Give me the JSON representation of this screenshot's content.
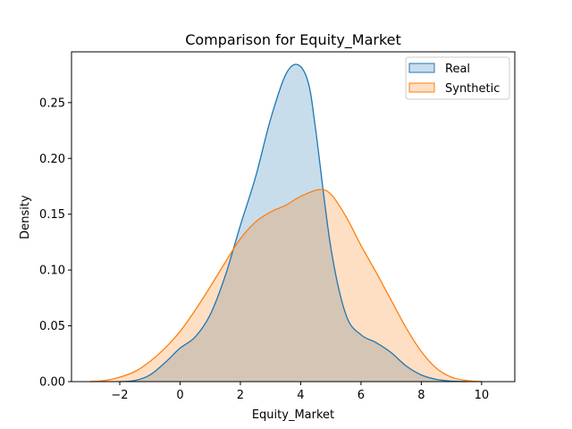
{
  "chart_data": {
    "type": "area",
    "title": "Comparison for Equity_Market",
    "xlabel": "Equity_Market",
    "ylabel": "Density",
    "xlim": [
      -3.6,
      11.1
    ],
    "ylim": [
      0,
      0.2955
    ],
    "xticks": [
      -2,
      0,
      2,
      4,
      6,
      8,
      10
    ],
    "xtick_labels": [
      "−2",
      "0",
      "2",
      "4",
      "6",
      "8",
      "10"
    ],
    "yticks": [
      0,
      0.05,
      0.1,
      0.15,
      0.2,
      0.25
    ],
    "ytick_labels": [
      "0.00",
      "0.05",
      "0.10",
      "0.15",
      "0.20",
      "0.25"
    ],
    "grid": false,
    "legend_position": "upper right",
    "series": [
      {
        "name": "Real",
        "line_color": "#1f77b4",
        "fill_color": "#1f77b4",
        "fill_opacity": 0.25,
        "x": [
          -2.0,
          -1.5,
          -1.0,
          -0.5,
          0.0,
          0.5,
          1.0,
          1.5,
          2.0,
          2.5,
          3.0,
          3.5,
          3.9,
          4.25,
          4.5,
          5.0,
          5.5,
          6.0,
          6.5,
          7.0,
          7.5,
          8.0,
          8.5,
          9.0,
          9.5
        ],
        "y": [
          0.0,
          0.001,
          0.006,
          0.017,
          0.03,
          0.04,
          0.06,
          0.095,
          0.14,
          0.183,
          0.235,
          0.275,
          0.284,
          0.268,
          0.225,
          0.12,
          0.06,
          0.042,
          0.035,
          0.026,
          0.014,
          0.006,
          0.002,
          0.0005,
          0.0
        ]
      },
      {
        "name": "Synthetic",
        "line_color": "#ff7f0e",
        "fill_color": "#ff7f0e",
        "fill_opacity": 0.25,
        "x": [
          -3.0,
          -2.5,
          -2.0,
          -1.5,
          -1.0,
          -0.5,
          0.0,
          0.5,
          1.0,
          1.5,
          2.0,
          2.5,
          3.0,
          3.5,
          4.0,
          4.6,
          5.0,
          5.5,
          6.0,
          6.5,
          7.0,
          7.5,
          8.0,
          8.5,
          9.0,
          9.5,
          10.0
        ],
        "y": [
          0.0,
          0.001,
          0.004,
          0.009,
          0.018,
          0.03,
          0.045,
          0.064,
          0.085,
          0.107,
          0.128,
          0.143,
          0.152,
          0.158,
          0.166,
          0.172,
          0.168,
          0.148,
          0.122,
          0.098,
          0.073,
          0.048,
          0.027,
          0.012,
          0.004,
          0.001,
          0.0
        ]
      }
    ]
  }
}
